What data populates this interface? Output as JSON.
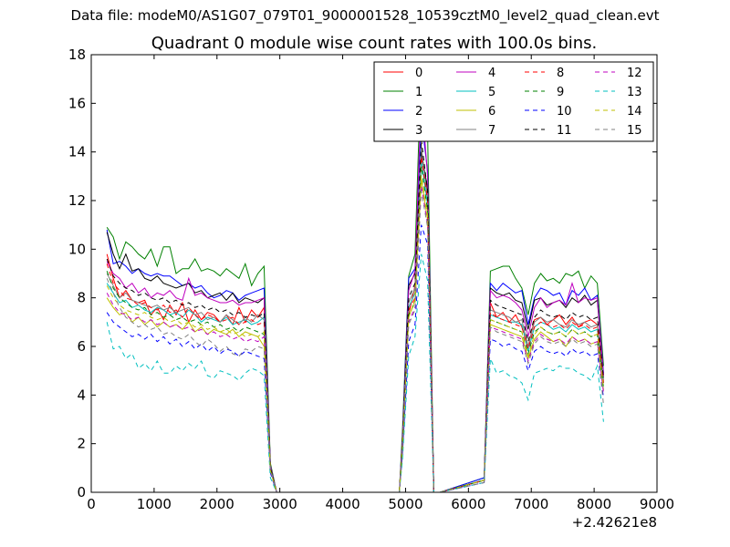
{
  "figure": {
    "suptitle": "Data file: modeM0/AS1G07_079T01_9000001528_10539cztM0_level2_quad_clean.evt",
    "title": "Quadrant 0 module wise count rates with 100.0s bins."
  },
  "chart_data": {
    "type": "line",
    "title": "Quadrant 0 module wise count rates with 100.0s bins.",
    "xlabel": "",
    "ylabel": "",
    "x_offset_label": "+2.42621e8",
    "xlim": [
      0,
      9000
    ],
    "ylim": [
      0,
      18
    ],
    "xticks": [
      0,
      1000,
      2000,
      3000,
      4000,
      5000,
      6000,
      7000,
      8000,
      9000
    ],
    "xtick_labels": [
      "0",
      "1000",
      "2000",
      "3000",
      "4000",
      "5000",
      "6000",
      "7000",
      "8000",
      "9000"
    ],
    "yticks": [
      0,
      2,
      4,
      6,
      8,
      10,
      12,
      14,
      16,
      18
    ],
    "ytick_labels": [
      "0",
      "2",
      "4",
      "6",
      "8",
      "10",
      "12",
      "14",
      "16",
      "18"
    ],
    "grid": false,
    "legend_position": "top-right",
    "legend_columns": 4,
    "x": [
      250,
      350,
      450,
      550,
      650,
      750,
      850,
      950,
      1050,
      1150,
      1250,
      1350,
      1450,
      1550,
      1650,
      1750,
      1850,
      1950,
      2050,
      2150,
      2250,
      2350,
      2450,
      2550,
      2650,
      2750,
      2850,
      2950,
      4900,
      4950,
      5050,
      5150,
      5250,
      5350,
      5450,
      5550,
      6250,
      6350,
      6450,
      6550,
      6650,
      6750,
      6850,
      6950,
      7050,
      7150,
      7250,
      7350,
      7450,
      7550,
      7650,
      7750,
      7850,
      7950,
      8050,
      8150
    ],
    "series": [
      {
        "name": "0",
        "color": "#ff0000",
        "dash": "solid",
        "values": [
          9.8,
          8.8,
          8.0,
          8.3,
          7.9,
          7.8,
          7.9,
          7.3,
          7.6,
          7.1,
          7.7,
          7.3,
          7.8,
          7.0,
          7.5,
          7.1,
          7.4,
          7.3,
          7.0,
          7.3,
          6.9,
          7.6,
          7.0,
          7.5,
          7.2,
          7.6,
          1.0,
          0.0,
          0.0,
          2.0,
          7.3,
          8.5,
          14.0,
          12.3,
          0.0,
          0.0,
          0.5,
          7.8,
          7.2,
          7.4,
          7.0,
          7.3,
          6.8,
          6.0,
          7.1,
          7.2,
          6.9,
          7.1,
          7.3,
          6.9,
          7.2,
          6.8,
          7.0,
          7.1,
          6.9,
          4.8
        ]
      },
      {
        "name": "1",
        "color": "#008000",
        "dash": "solid",
        "values": [
          10.9,
          10.5,
          9.6,
          10.3,
          10.1,
          9.8,
          9.6,
          10.0,
          9.3,
          10.1,
          10.1,
          9.0,
          9.2,
          9.2,
          9.6,
          9.1,
          9.2,
          9.1,
          8.9,
          9.2,
          9.0,
          8.8,
          9.4,
          8.5,
          9.0,
          9.3,
          1.2,
          0.0,
          0.0,
          2.5,
          8.9,
          9.8,
          17.7,
          14.8,
          0.0,
          0.0,
          0.6,
          9.1,
          9.2,
          9.3,
          9.3,
          8.8,
          8.4,
          7.3,
          8.6,
          9.0,
          8.7,
          8.8,
          8.6,
          9.0,
          8.9,
          9.1,
          8.4,
          8.9,
          8.6,
          5.2
        ]
      },
      {
        "name": "2",
        "color": "#0000ff",
        "dash": "solid",
        "values": [
          10.8,
          9.4,
          9.5,
          9.3,
          9.0,
          9.2,
          9.0,
          8.9,
          9.0,
          8.9,
          8.9,
          8.7,
          8.5,
          8.6,
          8.4,
          8.5,
          8.2,
          8.0,
          8.1,
          8.3,
          8.2,
          7.9,
          8.1,
          8.2,
          8.3,
          8.4,
          1.1,
          0.0,
          0.0,
          2.2,
          8.8,
          9.2,
          15.4,
          13.2,
          0.0,
          0.0,
          0.6,
          8.6,
          8.3,
          8.6,
          8.4,
          8.2,
          8.3,
          6.9,
          8.0,
          8.4,
          8.3,
          8.1,
          8.2,
          7.7,
          8.3,
          8.1,
          8.4,
          7.9,
          8.1,
          4.9
        ]
      },
      {
        "name": "3",
        "color": "#000000",
        "dash": "solid",
        "values": [
          10.7,
          9.8,
          9.2,
          9.8,
          9.1,
          9.2,
          8.8,
          8.7,
          8.9,
          8.6,
          8.5,
          8.4,
          8.5,
          8.6,
          8.2,
          8.3,
          8.0,
          8.1,
          8.2,
          7.9,
          8.2,
          7.8,
          8.0,
          7.9,
          7.8,
          8.0,
          1.1,
          0.0,
          0.0,
          2.1,
          8.5,
          9.0,
          14.0,
          12.5,
          0.0,
          0.0,
          0.5,
          8.4,
          8.2,
          8.1,
          8.2,
          7.9,
          7.8,
          6.7,
          7.9,
          8.0,
          7.7,
          7.8,
          7.9,
          7.6,
          8.0,
          7.8,
          8.1,
          7.7,
          7.9,
          4.7
        ]
      },
      {
        "name": "4",
        "color": "#bf00bf",
        "dash": "solid",
        "values": [
          9.5,
          9.0,
          8.8,
          8.4,
          8.6,
          8.2,
          8.4,
          8.0,
          8.2,
          8.1,
          8.3,
          8.0,
          7.9,
          8.8,
          8.1,
          8.2,
          8.0,
          7.9,
          7.8,
          7.8,
          7.9,
          7.7,
          7.8,
          7.8,
          7.9,
          8.0,
          1.1,
          0.0,
          0.0,
          2.1,
          8.3,
          9.1,
          16.4,
          13.0,
          0.0,
          0.0,
          0.5,
          8.3,
          8.0,
          8.1,
          8.0,
          7.8,
          7.5,
          6.4,
          7.6,
          8.0,
          7.6,
          7.8,
          7.9,
          7.7,
          8.6,
          7.8,
          8.0,
          7.9,
          8.0,
          4.8
        ]
      },
      {
        "name": "5",
        "color": "#00bfbf",
        "dash": "solid",
        "values": [
          8.6,
          8.2,
          7.8,
          7.9,
          7.6,
          7.7,
          7.5,
          7.4,
          7.6,
          7.5,
          7.3,
          7.4,
          7.2,
          7.5,
          7.3,
          7.0,
          7.2,
          7.1,
          7.0,
          7.2,
          6.9,
          7.0,
          7.1,
          6.9,
          7.0,
          7.2,
          1.0,
          0.0,
          0.0,
          1.9,
          7.6,
          8.2,
          13.7,
          11.8,
          0.0,
          0.0,
          0.5,
          7.3,
          7.2,
          7.1,
          7.0,
          7.0,
          6.9,
          5.8,
          6.8,
          7.0,
          6.9,
          6.7,
          6.8,
          6.6,
          6.9,
          6.7,
          6.8,
          6.6,
          6.7,
          4.5
        ]
      },
      {
        "name": "6",
        "color": "#bfbf00",
        "dash": "solid",
        "values": [
          8.0,
          7.6,
          7.3,
          7.4,
          7.0,
          7.2,
          6.9,
          7.1,
          6.8,
          7.0,
          6.8,
          6.9,
          6.7,
          7.0,
          6.6,
          6.8,
          6.5,
          6.7,
          6.6,
          6.5,
          6.7,
          6.4,
          6.6,
          6.5,
          6.4,
          6.0,
          0.9,
          0.0,
          0.0,
          1.8,
          7.2,
          7.9,
          12.9,
          11.2,
          0.0,
          0.0,
          0.5,
          6.9,
          6.8,
          6.7,
          6.6,
          6.5,
          6.4,
          5.5,
          6.3,
          6.6,
          6.4,
          6.2,
          6.3,
          6.0,
          6.4,
          6.2,
          6.3,
          6.1,
          6.2,
          4.2
        ]
      },
      {
        "name": "7",
        "color": "#808080",
        "dash": "solid",
        "values": [
          9.0,
          8.5,
          8.0,
          8.2,
          7.9,
          7.8,
          7.7,
          7.6,
          7.7,
          7.5,
          7.6,
          7.4,
          7.5,
          7.6,
          7.3,
          7.4,
          7.1,
          7.2,
          7.0,
          7.3,
          7.1,
          6.9,
          7.2,
          7.0,
          7.3,
          7.1,
          1.0,
          0.0,
          0.0,
          2.0,
          7.8,
          8.4,
          14.2,
          12.1,
          0.0,
          0.0,
          0.5,
          7.5,
          7.4,
          7.3,
          7.2,
          7.0,
          7.1,
          6.0,
          7.0,
          7.2,
          7.0,
          7.1,
          6.9,
          6.8,
          7.1,
          6.9,
          7.0,
          6.8,
          6.9,
          4.6
        ]
      },
      {
        "name": "8",
        "color": "#ff0000",
        "dash": "dashed",
        "values": [
          9.4,
          8.6,
          8.3,
          8.0,
          7.9,
          7.7,
          7.8,
          7.6,
          7.5,
          7.7,
          7.4,
          7.5,
          7.2,
          7.6,
          7.3,
          7.1,
          7.3,
          7.2,
          7.0,
          7.1,
          7.2,
          6.9,
          7.0,
          7.1,
          6.9,
          7.0,
          1.0,
          0.0,
          0.0,
          1.9,
          7.5,
          8.0,
          13.8,
          12.0,
          0.0,
          0.0,
          0.5,
          7.4,
          7.2,
          7.1,
          7.0,
          6.9,
          6.8,
          5.9,
          6.8,
          7.0,
          6.9,
          6.8,
          6.9,
          6.7,
          7.0,
          6.8,
          6.9,
          6.7,
          6.8,
          4.5
        ]
      },
      {
        "name": "9",
        "color": "#008000",
        "dash": "dashed",
        "values": [
          9.1,
          8.4,
          8.0,
          7.8,
          7.6,
          7.5,
          7.6,
          7.3,
          7.4,
          7.2,
          7.3,
          7.1,
          7.2,
          7.0,
          7.1,
          6.9,
          7.0,
          6.8,
          6.9,
          6.7,
          6.8,
          6.6,
          6.8,
          6.7,
          6.6,
          6.5,
          1.0,
          0.0,
          0.0,
          1.8,
          7.3,
          7.8,
          13.4,
          11.6,
          0.0,
          0.0,
          0.5,
          7.1,
          7.0,
          6.9,
          6.8,
          6.7,
          6.6,
          5.7,
          6.6,
          6.8,
          6.6,
          6.5,
          6.6,
          6.4,
          6.7,
          6.5,
          6.6,
          6.4,
          6.5,
          4.3
        ]
      },
      {
        "name": "10",
        "color": "#0000ff",
        "dash": "dashed",
        "values": [
          7.4,
          7.0,
          6.8,
          6.6,
          6.4,
          6.5,
          6.3,
          6.5,
          6.2,
          6.4,
          6.1,
          6.3,
          6.0,
          6.2,
          5.9,
          6.1,
          5.8,
          6.0,
          5.7,
          5.9,
          5.8,
          5.6,
          5.8,
          5.7,
          5.6,
          5.5,
          0.8,
          0.0,
          0.0,
          1.5,
          6.2,
          6.9,
          11.0,
          10.2,
          0.0,
          0.0,
          0.4,
          6.3,
          6.2,
          6.0,
          6.1,
          5.9,
          5.8,
          5.0,
          5.8,
          6.0,
          5.8,
          5.7,
          5.8,
          5.6,
          5.9,
          5.7,
          5.8,
          5.6,
          5.7,
          3.9
        ]
      },
      {
        "name": "11",
        "color": "#000000",
        "dash": "dashed",
        "values": [
          9.6,
          8.9,
          8.6,
          8.4,
          8.3,
          8.1,
          8.2,
          8.0,
          7.9,
          8.0,
          7.8,
          7.9,
          7.7,
          7.8,
          7.6,
          7.7,
          7.5,
          7.6,
          7.4,
          7.5,
          7.3,
          7.4,
          7.2,
          7.3,
          7.2,
          7.4,
          1.0,
          0.0,
          0.0,
          2.0,
          8.0,
          8.6,
          14.5,
          12.4,
          0.0,
          0.0,
          0.5,
          7.9,
          7.7,
          7.6,
          7.5,
          7.4,
          7.3,
          6.2,
          7.2,
          7.5,
          7.3,
          7.2,
          7.3,
          7.1,
          7.4,
          7.2,
          7.3,
          7.1,
          7.2,
          4.7
        ]
      },
      {
        "name": "12",
        "color": "#bf00bf",
        "dash": "dashed",
        "values": [
          8.2,
          7.7,
          7.4,
          7.3,
          7.1,
          7.2,
          7.0,
          7.1,
          6.9,
          7.0,
          6.8,
          6.9,
          6.7,
          6.8,
          6.6,
          6.7,
          6.5,
          6.6,
          6.4,
          6.5,
          6.3,
          6.4,
          6.2,
          6.3,
          6.2,
          6.4,
          0.9,
          0.0,
          0.0,
          1.8,
          7.0,
          7.6,
          12.6,
          11.0,
          0.0,
          0.0,
          0.4,
          6.8,
          6.7,
          6.6,
          6.5,
          6.4,
          6.3,
          5.4,
          6.2,
          6.5,
          6.3,
          6.2,
          6.3,
          6.1,
          6.4,
          6.2,
          6.3,
          6.1,
          6.2,
          4.1
        ]
      },
      {
        "name": "13",
        "color": "#00bfbf",
        "dash": "dashed",
        "values": [
          7.0,
          5.9,
          6.0,
          5.5,
          5.7,
          5.1,
          5.3,
          5.0,
          5.4,
          4.9,
          4.9,
          5.2,
          5.0,
          5.3,
          5.1,
          5.4,
          4.8,
          4.7,
          5.0,
          4.9,
          4.8,
          4.6,
          4.9,
          5.1,
          5.0,
          4.8,
          0.6,
          0.0,
          0.0,
          1.3,
          5.6,
          6.4,
          9.8,
          8.7,
          0.0,
          0.0,
          0.4,
          5.5,
          4.9,
          5.0,
          4.8,
          4.7,
          4.5,
          3.8,
          4.9,
          5.0,
          5.1,
          5.0,
          5.2,
          5.1,
          5.1,
          4.9,
          4.8,
          4.6,
          5.2,
          2.9
        ]
      },
      {
        "name": "14",
        "color": "#bfbf00",
        "dash": "dashed",
        "values": [
          8.5,
          8.0,
          7.7,
          7.5,
          7.4,
          7.3,
          7.4,
          7.2,
          7.1,
          7.2,
          7.0,
          7.1,
          6.9,
          7.0,
          6.8,
          6.9,
          6.7,
          6.8,
          6.6,
          6.7,
          6.5,
          6.6,
          6.4,
          6.5,
          6.4,
          6.6,
          0.9,
          0.0,
          0.0,
          1.8,
          7.2,
          7.9,
          13.0,
          11.4,
          0.0,
          0.0,
          0.5,
          7.1,
          7.0,
          6.9,
          6.8,
          6.7,
          6.6,
          5.6,
          6.5,
          6.8,
          6.6,
          6.5,
          6.6,
          6.4,
          6.7,
          6.5,
          6.6,
          6.4,
          6.5,
          4.3
        ]
      },
      {
        "name": "15",
        "color": "#808080",
        "dash": "dashed",
        "values": [
          8.8,
          8.2,
          7.6,
          7.2,
          7.0,
          6.8,
          6.9,
          6.7,
          6.8,
          6.5,
          6.6,
          6.4,
          6.3,
          6.5,
          6.2,
          6.0,
          6.3,
          6.1,
          5.8,
          6.0,
          5.7,
          5.6,
          5.9,
          5.8,
          6.0,
          5.9,
          0.9,
          0.0,
          0.0,
          1.7,
          6.9,
          7.5,
          12.4,
          10.9,
          0.0,
          0.0,
          0.4,
          6.8,
          6.6,
          6.5,
          6.4,
          6.3,
          6.2,
          5.3,
          6.1,
          6.4,
          6.2,
          6.1,
          6.2,
          6.0,
          6.3,
          6.1,
          6.2,
          6.0,
          6.1,
          3.6
        ]
      }
    ]
  }
}
